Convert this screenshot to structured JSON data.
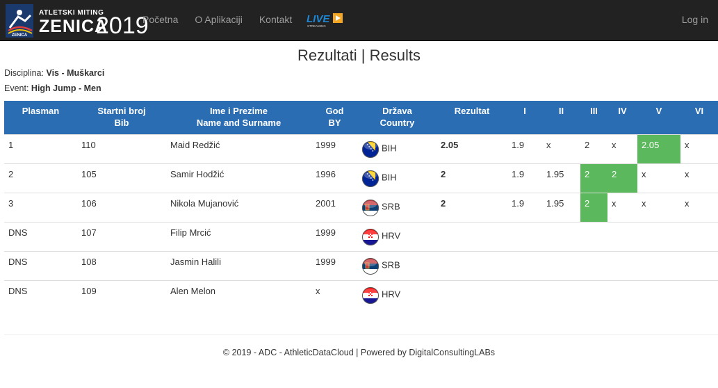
{
  "navbar": {
    "logo": {
      "line1": "ATLETSKI MITING",
      "line2": "ZENICA",
      "year": "2019",
      "small": "ZENICA"
    },
    "links": [
      "Početna",
      "O Aplikaciji",
      "Kontakt"
    ],
    "live_badge": {
      "text": "LIVE",
      "sub": "STREAMING"
    },
    "login": "Log in"
  },
  "page": {
    "title": "Rezultati | Results",
    "discipline": {
      "label": "Disciplina:",
      "value": "Vis - Muškarci"
    },
    "event": {
      "label": "Event:",
      "value": "High Jump - Men"
    }
  },
  "table": {
    "headers": [
      {
        "line1": "Plasman",
        "line2": ""
      },
      {
        "line1": "Startni broj",
        "line2": "Bib"
      },
      {
        "line1": "Ime i Prezime",
        "line2": "Name and Surname"
      },
      {
        "line1": "God",
        "line2": "BY"
      },
      {
        "line1": "Država",
        "line2": "Country"
      },
      {
        "line1": "Rezultat",
        "line2": ""
      },
      {
        "line1": "I",
        "line2": ""
      },
      {
        "line1": "II",
        "line2": ""
      },
      {
        "line1": "III",
        "line2": ""
      },
      {
        "line1": "IV",
        "line2": ""
      },
      {
        "line1": "V",
        "line2": ""
      },
      {
        "line1": "VI",
        "line2": ""
      }
    ],
    "rows": [
      {
        "place": "1",
        "bib": "110",
        "name": "Maid Redžić",
        "year": "1999",
        "country": "BIH",
        "flag": "bih",
        "result": "2.05",
        "attempts": [
          "1.9",
          "x",
          "2",
          "x",
          "2.05",
          "x"
        ],
        "success": [
          false,
          false,
          false,
          false,
          true,
          false
        ]
      },
      {
        "place": "2",
        "bib": "105",
        "name": "Samir Hodžić",
        "year": "1996",
        "country": "BIH",
        "flag": "bih",
        "result": "2",
        "attempts": [
          "1.9",
          "1.95",
          "2",
          "2",
          "x",
          "x"
        ],
        "success": [
          false,
          false,
          true,
          true,
          false,
          false
        ]
      },
      {
        "place": "3",
        "bib": "106",
        "name": "Nikola Mujanović",
        "year": "2001",
        "country": "SRB",
        "flag": "srb",
        "result": "2",
        "attempts": [
          "1.9",
          "1.95",
          "2",
          "x",
          "x",
          "x"
        ],
        "success": [
          false,
          false,
          true,
          false,
          false,
          false
        ]
      },
      {
        "place": "DNS",
        "bib": "107",
        "name": "Filip Mrcić",
        "year": "1999",
        "country": "HRV",
        "flag": "hrv",
        "result": "",
        "attempts": [
          "",
          "",
          "",
          "",
          "",
          ""
        ],
        "success": [
          false,
          false,
          false,
          false,
          false,
          false
        ]
      },
      {
        "place": "DNS",
        "bib": "108",
        "name": "Jasmin Halili",
        "year": "1999",
        "country": "SRB",
        "flag": "srb",
        "result": "",
        "attempts": [
          "",
          "",
          "",
          "",
          "",
          ""
        ],
        "success": [
          false,
          false,
          false,
          false,
          false,
          false
        ]
      },
      {
        "place": "DNS",
        "bib": "109",
        "name": "Alen Melon",
        "year": "x",
        "country": "HRV",
        "flag": "hrv",
        "result": "",
        "attempts": [
          "",
          "",
          "",
          "",
          "",
          ""
        ],
        "success": [
          false,
          false,
          false,
          false,
          false,
          false
        ]
      }
    ]
  },
  "footer": {
    "text": "© 2019 - ADC - AthleticDataCloud | Powered by DigitalConsultingLABs"
  },
  "colors": {
    "navbar": "#222222",
    "header": "#2b6db3",
    "success": "#5cb85c",
    "nav_text": "#9d9d9d",
    "live_blue": "#1e88d6",
    "live_orange": "#f5a623"
  }
}
